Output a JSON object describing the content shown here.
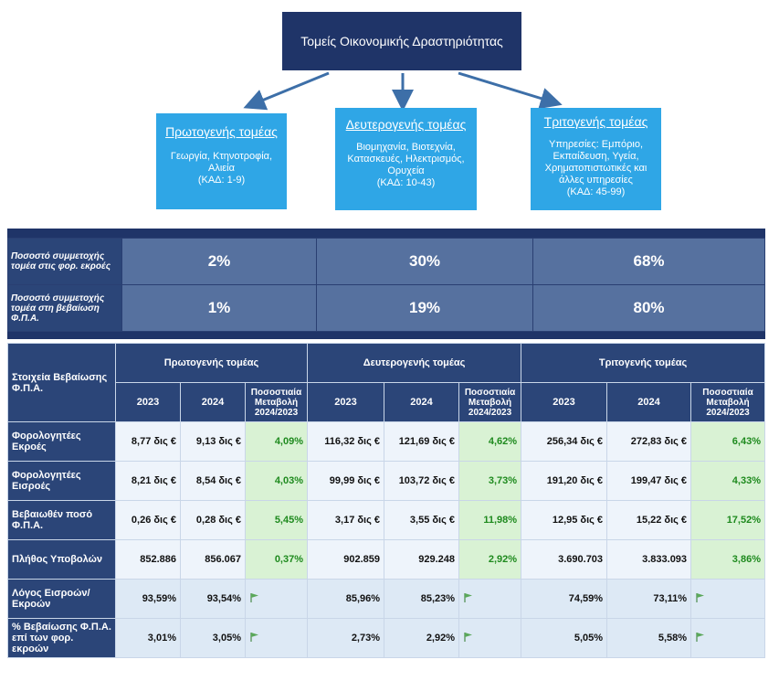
{
  "diagram": {
    "root": "Τομείς Οικονομικής Δραστηριότητας",
    "sectors": [
      {
        "title": "Πρωτογενής τομέας",
        "lines": [
          "Γεωργία, Κτηνοτροφία,",
          "Αλιεία",
          "(ΚΑΔ: 1-9)"
        ]
      },
      {
        "title": "Δευτερογενής τομέας",
        "lines": [
          "Βιομηχανία, Βιοτεχνία,",
          "Κατασκευές, Ηλεκτρισμός,",
          "Ορυχεία",
          "(ΚΑΔ: 10-43)"
        ]
      },
      {
        "title": "Τριτογενής τομέας",
        "lines": [
          "Υπηρεσίες: Εμπόριο,",
          "Εκπαίδευση, Υγεία,",
          "Χρηματοπιστωτικές και",
          "άλλες υπηρεσίες",
          "(ΚΑΔ: 45-99)"
        ]
      }
    ]
  },
  "share_table": {
    "rows": [
      {
        "label": "Ποσοστό συμμετοχής τομέα στις φορ. εκροές",
        "values": [
          "2%",
          "30%",
          "68%"
        ]
      },
      {
        "label": "Ποσοστό συμμετοχής τομέα στη βεβαίωση Φ.Π.Α.",
        "values": [
          "1%",
          "19%",
          "80%"
        ]
      }
    ]
  },
  "main_table": {
    "corner": "Στοιχεία Βεβαίωσης Φ.Π.Α.",
    "groups": [
      "Πρωτογενής τομέας",
      "Δευτερογενής τομέας",
      "Τριτογενής τομέας"
    ],
    "subheaders": [
      "2023",
      "2024",
      "Ποσοστιαία Μεταβολή 2024/2023"
    ],
    "rows": [
      {
        "label": "Φορολογητέες Εκροές",
        "cells": [
          "8,77 δις €",
          "9,13 δις €",
          "4,09%",
          "116,32 δις €",
          "121,69 δις €",
          "4,62%",
          "256,34 δις €",
          "272,83 δις €",
          "6,43%"
        ]
      },
      {
        "label": "Φορολογητέες Εισροές",
        "cells": [
          "8,21 δις €",
          "8,54 δις €",
          "4,03%",
          "99,99 δις €",
          "103,72 δις €",
          "3,73%",
          "191,20 δις €",
          "199,47 δις €",
          "4,33%"
        ]
      },
      {
        "label": "Βεβαιωθέν ποσό Φ.Π.Α.",
        "cells": [
          "0,26 δις €",
          "0,28 δις €",
          "5,45%",
          "3,17 δις €",
          "3,55 δις €",
          "11,98%",
          "12,95 δις €",
          "15,22 δις €",
          "17,52%"
        ]
      },
      {
        "label": "Πλήθος Υποβολών",
        "cells": [
          "852.886",
          "856.067",
          "0,37%",
          "902.859",
          "929.248",
          "2,92%",
          "3.690.703",
          "3.833.093",
          "3,86%"
        ]
      }
    ],
    "ratio_rows": [
      {
        "label": "Λόγος Εισροών/Εκροών",
        "cells": [
          "93,59%",
          "93,54%",
          "85,96%",
          "85,23%",
          "74,59%",
          "73,11%"
        ]
      },
      {
        "label": "% Βεβαίωσης Φ.Π.Α. επί των φορ. εκροών",
        "cells": [
          "3,01%",
          "3,05%",
          "2,73%",
          "2,92%",
          "5,05%",
          "5,58%"
        ]
      }
    ]
  }
}
